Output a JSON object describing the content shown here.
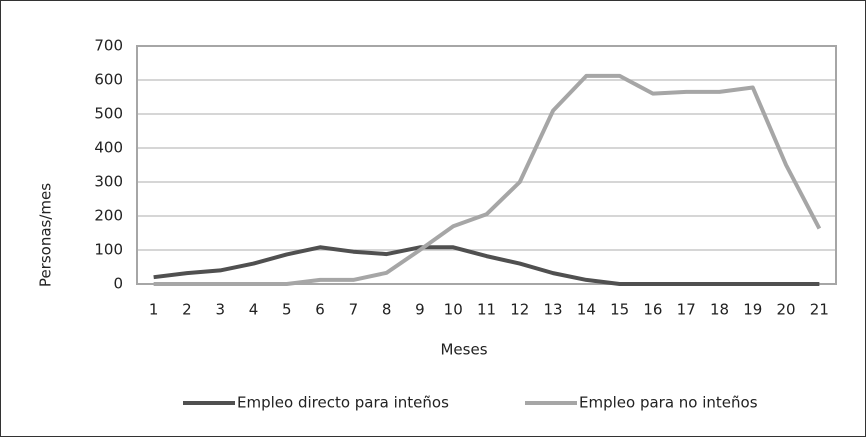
{
  "chart_data": {
    "type": "line",
    "categories": [
      "1",
      "2",
      "3",
      "4",
      "5",
      "6",
      "7",
      "8",
      "9",
      "10",
      "11",
      "12",
      "13",
      "14",
      "15",
      "16",
      "17",
      "18",
      "19",
      "20",
      "21"
    ],
    "x_label": "Meses",
    "y_label": "Personas/mes",
    "series": [
      {
        "name": "Empleo directo para inteños",
        "color": "#505050",
        "values": [
          20,
          32,
          40,
          60,
          87,
          108,
          95,
          88,
          108,
          108,
          82,
          60,
          32,
          12,
          0,
          0,
          0,
          0,
          0,
          0,
          0
        ]
      },
      {
        "name": "Empleo para no inteños",
        "color": "#a6a6a6",
        "values": [
          0,
          0,
          0,
          0,
          0,
          12,
          12,
          33,
          100,
          170,
          205,
          300,
          510,
          612,
          612,
          560,
          565,
          565,
          578,
          350,
          163
        ]
      }
    ],
    "ylim": [
      0,
      700
    ],
    "yticks": [
      0,
      100,
      200,
      300,
      400,
      500,
      600,
      700
    ],
    "grid": true,
    "legend": "bottom"
  }
}
